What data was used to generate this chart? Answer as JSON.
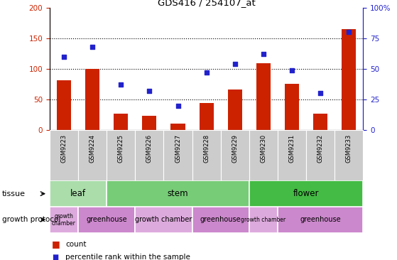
{
  "title": "GDS416 / 254107_at",
  "samples": [
    "GSM9223",
    "GSM9224",
    "GSM9225",
    "GSM9226",
    "GSM9227",
    "GSM9228",
    "GSM9229",
    "GSM9230",
    "GSM9231",
    "GSM9232",
    "GSM9233"
  ],
  "counts": [
    81,
    100,
    27,
    23,
    11,
    44,
    66,
    109,
    75,
    27,
    165
  ],
  "percentiles": [
    60,
    68,
    37,
    32,
    20,
    47,
    54,
    62,
    49,
    30,
    80
  ],
  "ylim_left": [
    0,
    200
  ],
  "ylim_right": [
    0,
    100
  ],
  "yticks_left": [
    0,
    50,
    100,
    150,
    200
  ],
  "yticks_right": [
    0,
    25,
    50,
    75,
    100
  ],
  "yticklabels_right": [
    "0",
    "25",
    "50",
    "75",
    "100%"
  ],
  "tissue_groups": [
    {
      "label": "leaf",
      "start": 0,
      "end": 2,
      "color": "#aaddaa"
    },
    {
      "label": "stem",
      "start": 2,
      "end": 7,
      "color": "#77cc77"
    },
    {
      "label": "flower",
      "start": 7,
      "end": 11,
      "color": "#44bb44"
    }
  ],
  "protocol_groups": [
    {
      "label": "growth\nchamber",
      "start": 0,
      "end": 1,
      "color": "#ddaadd"
    },
    {
      "label": "greenhouse",
      "start": 1,
      "end": 3,
      "color": "#cc88cc"
    },
    {
      "label": "growth chamber",
      "start": 3,
      "end": 5,
      "color": "#ddaadd"
    },
    {
      "label": "greenhouse",
      "start": 5,
      "end": 7,
      "color": "#cc88cc"
    },
    {
      "label": "growth chamber",
      "start": 7,
      "end": 8,
      "color": "#ddaadd"
    },
    {
      "label": "greenhouse",
      "start": 8,
      "end": 11,
      "color": "#cc88cc"
    }
  ],
  "bar_color": "#cc2200",
  "dot_color": "#2222cc",
  "axis_color_left": "#cc2200",
  "axis_color_right": "#2222cc",
  "tick_bg_color": "#cccccc",
  "legend_count_color": "#cc2200",
  "legend_pct_color": "#2222cc"
}
